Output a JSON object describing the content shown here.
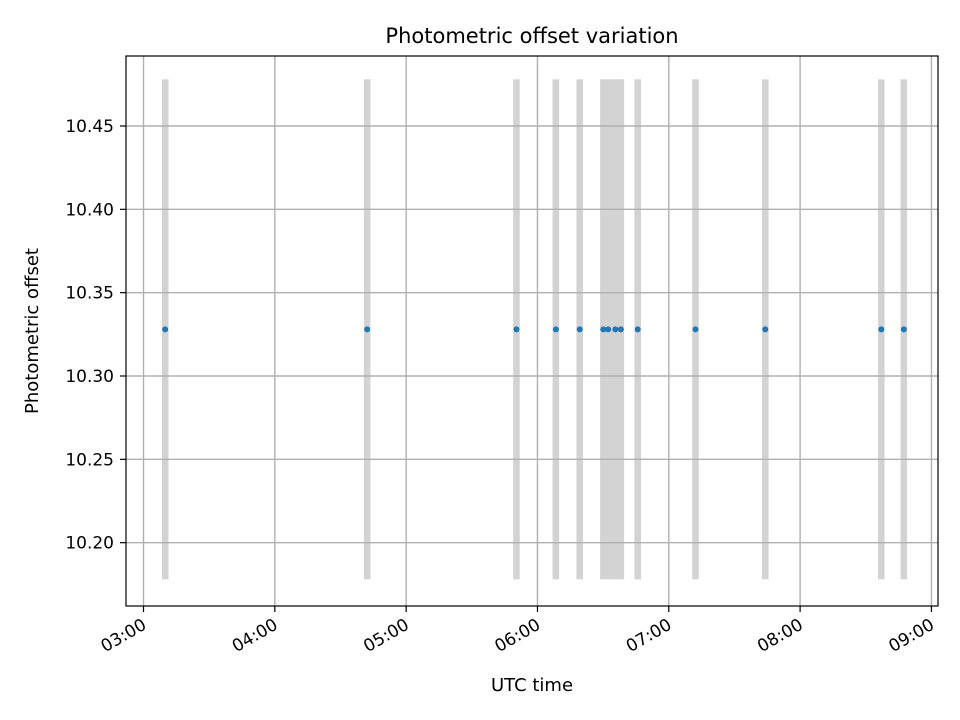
{
  "chart_data": {
    "type": "scatter",
    "title": "Photometric offset variation",
    "xlabel": "UTC time",
    "ylabel": "Photometric offset",
    "x_ticks": [
      "03:00",
      "04:00",
      "05:00",
      "06:00",
      "07:00",
      "08:00",
      "09:00"
    ],
    "y_ticks": [
      "10.20",
      "10.25",
      "10.30",
      "10.35",
      "10.40",
      "10.45"
    ],
    "xlim": [
      "02:52",
      "09:03"
    ],
    "ylim": [
      10.162,
      10.492
    ],
    "grid": true,
    "colors": {
      "points": "#1f77b4",
      "bands": "#d3d3d3",
      "grid": "#b0b0b0"
    },
    "exposure_band_y_range": [
      10.178,
      10.478
    ],
    "exposure_bands": [
      {
        "start": "03:08.4",
        "end": "03:11.4"
      },
      {
        "start": "04:40.7",
        "end": "04:43.7"
      },
      {
        "start": "05:48.9",
        "end": "05:51.9"
      },
      {
        "start": "06:06.9",
        "end": "06:09.9"
      },
      {
        "start": "06:17.8",
        "end": "06:20.8"
      },
      {
        "start": "06:28.6",
        "end": "06:37.1"
      },
      {
        "start": "06:36.6",
        "end": "06:39.6"
      },
      {
        "start": "06:44.3",
        "end": "06:47.3"
      },
      {
        "start": "07:10.7",
        "end": "07:13.7"
      },
      {
        "start": "07:42.6",
        "end": "07:45.6"
      },
      {
        "start": "08:35.6",
        "end": "08:38.6"
      },
      {
        "start": "08:45.9",
        "end": "08:48.9"
      }
    ],
    "series": [
      {
        "x": [
          "03:09.9",
          "04:42.2",
          "05:50.4",
          "06:08.4",
          "06:19.3",
          "06:30.1",
          "06:32.3",
          "06:35.6",
          "06:38.1",
          "06:45.8",
          "07:12.2",
          "07:44.1",
          "08:37.1",
          "08:47.4"
        ],
        "y": [
          10.328,
          10.328,
          10.328,
          10.328,
          10.328,
          10.328,
          10.328,
          10.328,
          10.328,
          10.328,
          10.328,
          10.328,
          10.328,
          10.328
        ]
      }
    ]
  }
}
